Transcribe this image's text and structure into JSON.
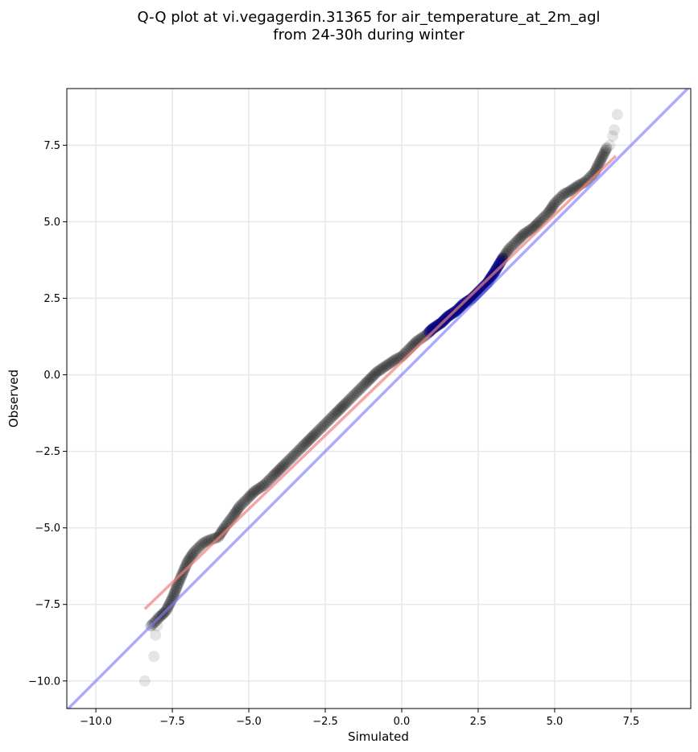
{
  "chart_data": {
    "type": "scatter",
    "title_line1": "Q-Q plot at vi.vegagerdin.31365 for air_temperature_at_2m_agl",
    "title_line2": "from 24-30h during winter",
    "xlabel": "Simulated",
    "ylabel": "Observed",
    "xlim": [
      -10.95,
      9.45
    ],
    "ylim": [
      -10.9,
      9.35
    ],
    "x_ticks": [
      -10.0,
      -7.5,
      -5.0,
      -2.5,
      0.0,
      2.5,
      5.0,
      7.5
    ],
    "x_tick_labels": [
      "−10.0",
      "−7.5",
      "−5.0",
      "−2.5",
      "0.0",
      "2.5",
      "5.0",
      "7.5"
    ],
    "y_ticks": [
      -10.0,
      -7.5,
      -5.0,
      -2.5,
      0.0,
      2.5,
      5.0,
      7.5
    ],
    "y_tick_labels": [
      "−10.0",
      "−7.5",
      "−5.0",
      "−2.5",
      "0.0",
      "2.5",
      "5.0",
      "7.5"
    ],
    "grid": true,
    "curve": {
      "x": [
        -8.2,
        -7.9,
        -7.7,
        -7.5,
        -7.3,
        -7.0,
        -6.8,
        -6.5,
        -6.3,
        -6.0,
        -5.8,
        -5.5,
        -5.3,
        -5.0,
        -4.8,
        -4.5,
        -4.2,
        -4.0,
        -3.8,
        -3.5,
        -3.2,
        -3.0,
        -2.8,
        -2.5,
        -2.2,
        -2.0,
        -1.8,
        -1.5,
        -1.2,
        -1.0,
        -0.8,
        -0.5,
        -0.2,
        0.0,
        0.3,
        0.5,
        0.8,
        1.0,
        1.3,
        1.5,
        1.8,
        2.0,
        2.3,
        2.5,
        2.8,
        3.0,
        3.3,
        3.5,
        3.8,
        4.0,
        4.3,
        4.5,
        4.8,
        5.0,
        5.3,
        5.5,
        5.8,
        6.0,
        6.3,
        6.5,
        6.7
      ],
      "y": [
        -8.2,
        -7.9,
        -7.7,
        -7.3,
        -6.8,
        -6.1,
        -5.8,
        -5.5,
        -5.4,
        -5.3,
        -5.0,
        -4.6,
        -4.3,
        -4.0,
        -3.8,
        -3.6,
        -3.3,
        -3.1,
        -2.9,
        -2.6,
        -2.3,
        -2.1,
        -1.9,
        -1.6,
        -1.3,
        -1.1,
        -0.9,
        -0.6,
        -0.3,
        -0.1,
        0.1,
        0.3,
        0.5,
        0.6,
        0.9,
        1.1,
        1.3,
        1.5,
        1.7,
        1.9,
        2.1,
        2.3,
        2.5,
        2.7,
        3.0,
        3.3,
        3.8,
        4.1,
        4.4,
        4.6,
        4.8,
        5.0,
        5.3,
        5.6,
        5.9,
        6.0,
        6.2,
        6.3,
        6.6,
        7.0,
        7.4
      ]
    },
    "outliers": {
      "x": [
        -8.4,
        -8.1,
        -8.05,
        -8.0,
        -7.95,
        -7.8,
        6.8,
        6.9,
        6.95,
        7.05
      ],
      "y": [
        -10.0,
        -9.2,
        -8.5,
        -8.2,
        -7.9,
        -7.8,
        7.5,
        7.8,
        8.0,
        8.5
      ]
    },
    "dense_region": {
      "x_range": [
        0.9,
        3.3
      ]
    },
    "fit_line": {
      "x": [
        -8.4,
        7.0
      ],
      "y": [
        -7.65,
        7.15
      ]
    },
    "identity_line": {
      "x": [
        -10.95,
        9.45
      ],
      "y": [
        -10.95,
        9.45
      ]
    },
    "colors": {
      "points": "#000000",
      "points_dense": "#000080",
      "fit_line": "#f08080",
      "identity_line": "#8080ff",
      "grid": "#e8e8e8"
    }
  }
}
